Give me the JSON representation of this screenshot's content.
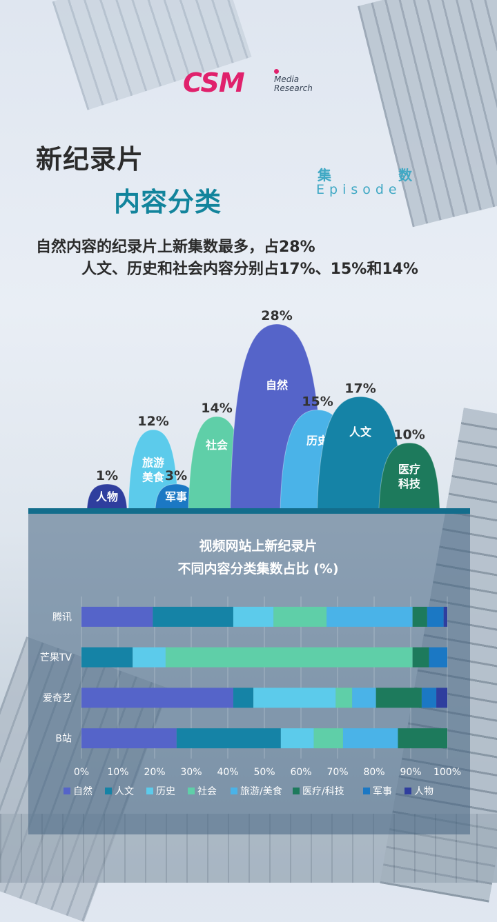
{
  "logo": {
    "brand": "CSM",
    "sub1": "Media",
    "sub2": "Research"
  },
  "title": {
    "line1": "新纪录片",
    "line2": "内容分类"
  },
  "unit": {
    "cn": "集 数",
    "en": "Episode"
  },
  "subtitle": {
    "line1": "自然内容的纪录片上新集数最多，占28%",
    "line2": "人文、历史和社会内容分别占17%、15%和14%"
  },
  "colors": {
    "自然": "#5564c9",
    "人文": "#1583a6",
    "历史": "#5ccbeb",
    "社会": "#5fcfa8",
    "旅游/美食": "#4ab3e8",
    "医疗/科技": "#1d7a5c",
    "军事": "#1b78c4",
    "人物": "#2f3e9e"
  },
  "peaks": [
    {
      "label": "人物",
      "pct": "1%",
      "value": 1,
      "color": "#2f3e9e"
    },
    {
      "label": "旅游\n美食",
      "pct": "12%",
      "value": 12,
      "color": "#5ccbeb"
    },
    {
      "label": "军事",
      "pct": "3%",
      "value": 3,
      "color": "#1b78c4"
    },
    {
      "label": "社会",
      "pct": "14%",
      "value": 14,
      "color": "#5fcfa8"
    },
    {
      "label": "自然",
      "pct": "28%",
      "value": 28,
      "color": "#5564c9"
    },
    {
      "label": "历史",
      "pct": "15%",
      "value": 15,
      "color": "#4ab3e8"
    },
    {
      "label": "人文",
      "pct": "17%",
      "value": 17,
      "color": "#1583a6"
    },
    {
      "label": "医疗\n科技",
      "pct": "10%",
      "value": 10,
      "color": "#1d7a5c"
    }
  ],
  "chart_data": {
    "type": "bar",
    "orientation": "horizontal",
    "stacked": true,
    "title": "视频网站上新纪录片\n不同内容分类集数占比 (%)",
    "categories": [
      "腾讯",
      "芒果TV",
      "爱奇艺",
      "B站"
    ],
    "series": [
      {
        "name": "自然",
        "values": [
          19.5,
          0,
          41.5,
          26
        ]
      },
      {
        "name": "人文",
        "values": [
          22,
          14,
          5.5,
          28.5
        ]
      },
      {
        "name": "历史",
        "values": [
          11,
          9,
          22.5,
          9
        ]
      },
      {
        "name": "社会",
        "values": [
          14.5,
          67.5,
          4.5,
          8
        ]
      },
      {
        "name": "旅游/美食",
        "values": [
          23.5,
          0,
          6.5,
          15
        ]
      },
      {
        "name": "医疗/科技",
        "values": [
          4,
          4.5,
          12.5,
          13.5
        ]
      },
      {
        "name": "军事",
        "values": [
          4.5,
          5,
          4,
          0
        ]
      },
      {
        "name": "人物",
        "values": [
          1,
          0,
          3,
          0
        ]
      }
    ],
    "xlim": [
      0,
      100
    ],
    "xticks": [
      "0%",
      "10%",
      "20%",
      "30%",
      "40%",
      "50%",
      "60%",
      "70%",
      "80%",
      "90%",
      "100%"
    ],
    "grid": true,
    "legend": "bottom"
  }
}
